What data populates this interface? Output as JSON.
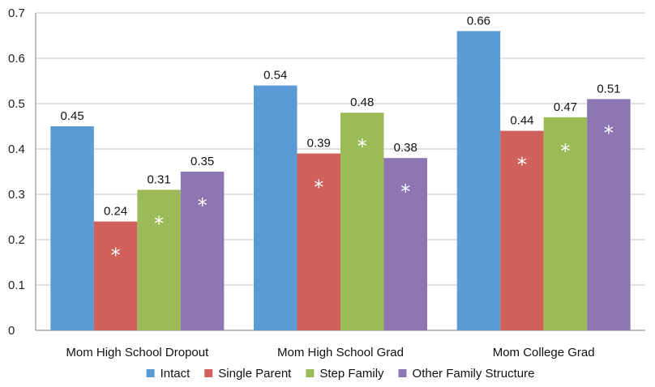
{
  "chart_data": {
    "type": "bar",
    "categories": [
      "Mom High School Dropout",
      "Mom High School Grad",
      "Mom College Grad"
    ],
    "series": [
      {
        "name": "Intact",
        "color": "#5b9bd5",
        "values": [
          0.45,
          0.54,
          0.66
        ],
        "markers": [
          "",
          "",
          ""
        ]
      },
      {
        "name": "Single Parent",
        "color": "#d0605a",
        "values": [
          0.24,
          0.39,
          0.44
        ],
        "markers": [
          "*",
          "*",
          "*"
        ]
      },
      {
        "name": "Step Family",
        "color": "#9bbb59",
        "values": [
          0.31,
          0.48,
          0.47
        ],
        "markers": [
          "*",
          "*",
          "*"
        ]
      },
      {
        "name": "Other Family Structure",
        "color": "#8e76b3",
        "values": [
          0.35,
          0.38,
          0.51
        ],
        "markers": [
          "*",
          "*",
          "*"
        ]
      }
    ],
    "value_labels": [
      [
        "0.45",
        "0.54",
        "0.66"
      ],
      [
        "0.24",
        "0.39",
        "0.44"
      ],
      [
        "0.31",
        "0.48",
        "0.47"
      ],
      [
        "0.35",
        "0.38",
        "0.51"
      ]
    ],
    "y_ticks": [
      "0",
      "0.1",
      "0.2",
      "0.3",
      "0.4",
      "0.5",
      "0.6",
      "0.7"
    ],
    "ylim": [
      0,
      0.7
    ],
    "grid": true,
    "legend": "bottom",
    "title": "",
    "xlabel": "",
    "ylabel": ""
  }
}
